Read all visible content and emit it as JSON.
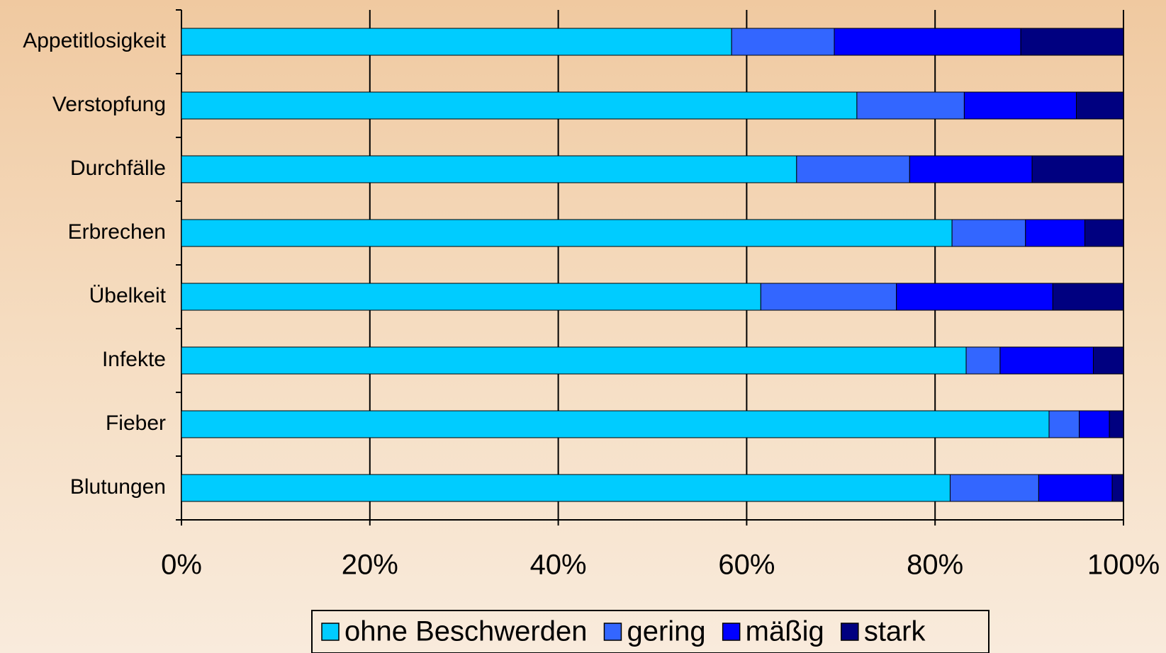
{
  "chart_data": {
    "type": "stacked_bar_horizontal",
    "categories": [
      "Appetitlosigkeit",
      "Verstopfung",
      "Durchfälle",
      "Erbrechen",
      "Übelkeit",
      "Infekte",
      "Fieber",
      "Blutungen"
    ],
    "series": [
      {
        "name": "ohne Beschwerden",
        "color": "#00ccff",
        "values": [
          58.4,
          71.7,
          65.3,
          81.8,
          61.5,
          83.3,
          92.1,
          81.6
        ]
      },
      {
        "name": "gering",
        "color": "#3366ff",
        "values": [
          10.9,
          11.4,
          12,
          7.8,
          14.4,
          3.6,
          3.2,
          9.4
        ]
      },
      {
        "name": "mäßig",
        "color": "#0000ff",
        "values": [
          19.8,
          11.9,
          13,
          6.3,
          16.6,
          9.9,
          3.2,
          7.8
        ]
      },
      {
        "name": "stark",
        "color": "#000080",
        "values": [
          10.9,
          5,
          9.7,
          4.1,
          7.5,
          3.2,
          1.5,
          1.2
        ]
      }
    ],
    "xlim": [
      0,
      100
    ],
    "xticks": [
      {
        "value": 0,
        "label": "0%"
      },
      {
        "value": 20,
        "label": "20%"
      },
      {
        "value": 40,
        "label": "40%"
      },
      {
        "value": 60,
        "label": "60%"
      },
      {
        "value": 80,
        "label": "80%"
      },
      {
        "value": 100,
        "label": "100%"
      }
    ],
    "grid": true,
    "legend": "bottom"
  }
}
